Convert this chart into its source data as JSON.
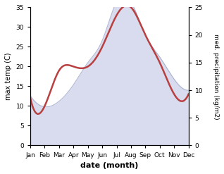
{
  "months": [
    "Jan",
    "Feb",
    "Mar",
    "Apr",
    "May",
    "Jun",
    "Jul",
    "Aug",
    "Sep",
    "Oct",
    "Nov",
    "Dec"
  ],
  "month_indices": [
    0,
    1,
    2,
    3,
    4,
    5,
    6,
    7,
    8,
    9,
    10,
    11
  ],
  "temperature": [
    12,
    10,
    19,
    20,
    20,
    25,
    33,
    35,
    28,
    21,
    13,
    13
  ],
  "precipitation": [
    9,
    7,
    8,
    11,
    15,
    19,
    26,
    26,
    20,
    16,
    12,
    10
  ],
  "temp_color": "#b94040",
  "precip_fill_color": "#b8c0e0",
  "precip_fill_alpha": 0.55,
  "precip_edge_color": "#9098c0",
  "ylim_left": [
    0,
    35
  ],
  "ylim_right": [
    0,
    25
  ],
  "yticks_left": [
    0,
    5,
    10,
    15,
    20,
    25,
    30,
    35
  ],
  "yticks_right": [
    0,
    5,
    10,
    15,
    20,
    25
  ],
  "xlabel": "date (month)",
  "ylabel_left": "max temp (C)",
  "ylabel_right": "med. precipitation (kg/m2)",
  "temp_linewidth": 1.8,
  "bg_color": "#ffffff"
}
